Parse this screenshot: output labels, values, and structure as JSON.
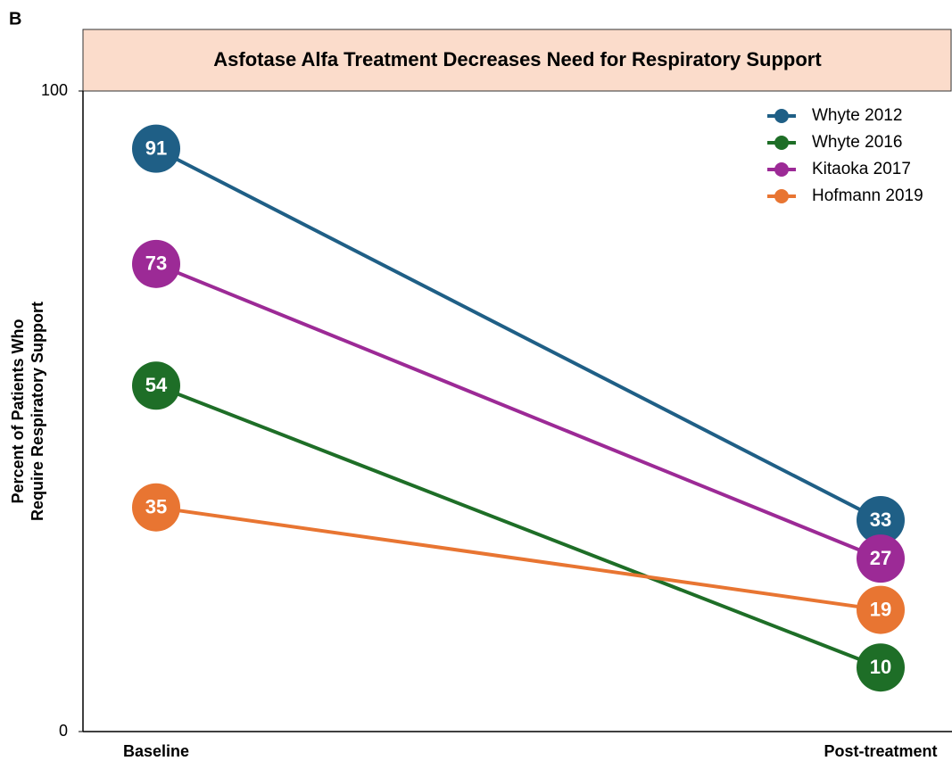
{
  "chart_data": {
    "type": "line",
    "panel_label": "B",
    "title": "Asfotase Alfa Treatment Decreases Need for Respiratory Support",
    "ylabel": [
      "Percent of Patients Who",
      "Require Respiratory Support"
    ],
    "categories": [
      "Baseline",
      "Post-treatment"
    ],
    "series": [
      {
        "name": "Whyte 2012",
        "color": "#1f5f86",
        "values": [
          91,
          33
        ]
      },
      {
        "name": "Whyte 2016",
        "color": "#1e6e27",
        "values": [
          54,
          10
        ]
      },
      {
        "name": "Kitaoka 2017",
        "color": "#9c2a96",
        "values": [
          73,
          27
        ]
      },
      {
        "name": "Hofmann 2019",
        "color": "#e87532",
        "values": [
          35,
          19
        ]
      }
    ],
    "ylim": [
      0,
      100
    ],
    "yticks": [
      0,
      100
    ],
    "legend": "upper right",
    "grid": false
  }
}
